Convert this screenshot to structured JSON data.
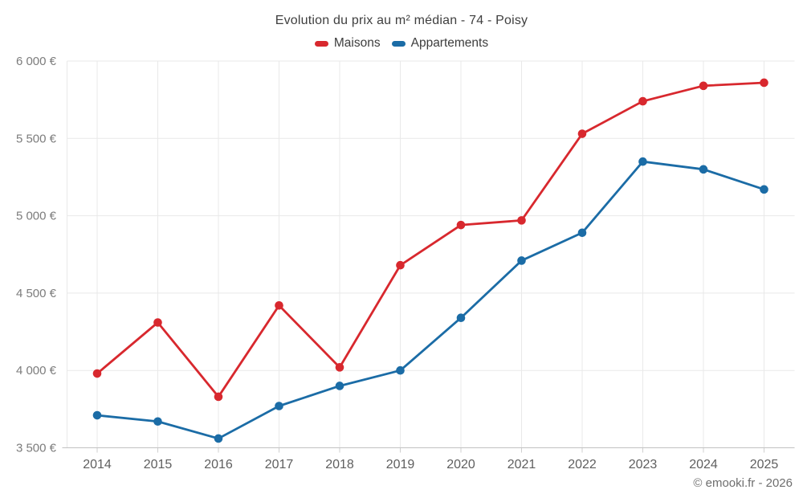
{
  "title": "Evolution du prix au m² médian - 74 - Poisy",
  "footer": "© emooki.fr - 2026",
  "legend": [
    {
      "label": "Maisons",
      "color": "#d8282e"
    },
    {
      "label": "Appartements",
      "color": "#1b6ca6"
    }
  ],
  "colors": {
    "maisons": "#d8282e",
    "appartements": "#1b6ca6",
    "gridline": "#e9e9e9",
    "axis_line": "#c2c2c2",
    "tick": "#cfcfcf",
    "y_label": "#7c7c7c",
    "x_label": "#5f5f5f",
    "title_text": "#3f3f3f"
  },
  "chart_data": {
    "type": "line",
    "title": "Evolution du prix au m² médian - 74 - Poisy",
    "categories": [
      "2014",
      "2015",
      "2016",
      "2017",
      "2018",
      "2019",
      "2020",
      "2021",
      "2022",
      "2023",
      "2024",
      "2025"
    ],
    "series": [
      {
        "name": "Maisons",
        "color": "#d8282e",
        "values": [
          3980,
          4310,
          3830,
          4420,
          4020,
          4680,
          4940,
          4970,
          5530,
          5740,
          5840,
          5860
        ]
      },
      {
        "name": "Appartements",
        "color": "#1b6ca6",
        "values": [
          3710,
          3670,
          3560,
          3770,
          3900,
          4000,
          4340,
          4710,
          4890,
          5350,
          5300,
          5170
        ]
      }
    ],
    "xlabel": "",
    "ylabel": "",
    "ylim": [
      3500,
      6000
    ],
    "ytick_step": 500,
    "yticks": [
      "3 500 €",
      "4 000 €",
      "4 500 €",
      "5 000 €",
      "5 500 €",
      "6 000 €"
    ],
    "unit": "€",
    "grid": true,
    "legend_position": "top",
    "marker": "circle"
  }
}
